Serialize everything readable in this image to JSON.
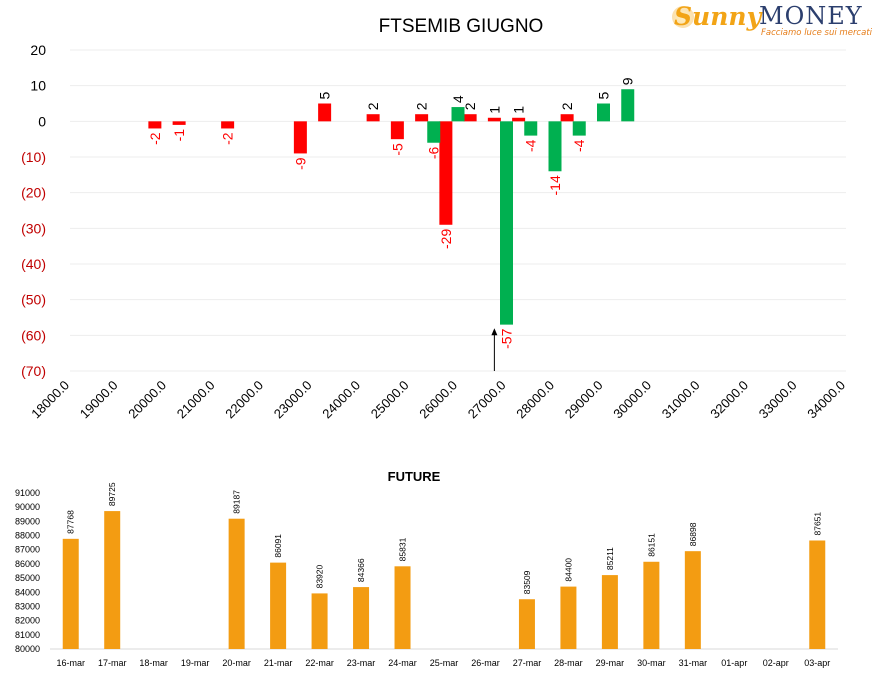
{
  "logo": {
    "brand_left": "Sunny",
    "brand_right": "MONEY",
    "tagline": "Facciamo luce sui mercati"
  },
  "colors": {
    "negative": "#ff0000",
    "positive": "#00b050",
    "future_bar": "#f39c12",
    "axis_text": "#000000",
    "neg_axis_text": "#c00000",
    "grid": "#ededed"
  },
  "chart_data": [
    {
      "type": "bar",
      "title": "FTSEMIB GIUGNO",
      "xlabel": "",
      "ylabel": "",
      "xlim": [
        18000,
        34000
      ],
      "ylim": [
        -70,
        20
      ],
      "x_ticks": [
        "18000.0",
        "19000.0",
        "20000.0",
        "21000.0",
        "22000.0",
        "23000.0",
        "24000.0",
        "25000.0",
        "26000.0",
        "27000.0",
        "28000.0",
        "29000.0",
        "30000.0",
        "31000.0",
        "32000.0",
        "33000.0",
        "34000.0"
      ],
      "y_ticks": [
        "20",
        "10",
        "0",
        "(10)",
        "(20)",
        "(30)",
        "(40)",
        "(50)",
        "(60)",
        "(70)"
      ],
      "grid": true,
      "series": [
        {
          "color": "red",
          "points": [
            {
              "x": 19750,
              "y": -2
            },
            {
              "x": 20250,
              "y": -1
            },
            {
              "x": 21250,
              "y": -2
            },
            {
              "x": 22750,
              "y": -9
            },
            {
              "x": 23250,
              "y": 5
            },
            {
              "x": 24250,
              "y": 2
            },
            {
              "x": 24750,
              "y": -5
            },
            {
              "x": 25250,
              "y": 2
            },
            {
              "x": 25750,
              "y": -29
            },
            {
              "x": 26250,
              "y": 2
            },
            {
              "x": 26750,
              "y": 1
            },
            {
              "x": 27250,
              "y": 1
            },
            {
              "x": 28250,
              "y": 2
            }
          ]
        },
        {
          "color": "green",
          "points": [
            {
              "x": 25500,
              "y": -6
            },
            {
              "x": 26000,
              "y": 4
            },
            {
              "x": 27000,
              "y": -57
            },
            {
              "x": 27500,
              "y": -4
            },
            {
              "x": 28000,
              "y": -14
            },
            {
              "x": 28500,
              "y": -4
            },
            {
              "x": 29000,
              "y": 5
            },
            {
              "x": 29500,
              "y": 9
            }
          ]
        }
      ],
      "annotations": [
        {
          "type": "arrow-up",
          "x": 26750,
          "y_from": -70,
          "y_to": -58
        }
      ]
    },
    {
      "type": "bar",
      "title": "FUTURE",
      "xlabel": "",
      "ylabel": "",
      "categories": [
        "16-mar",
        "17-mar",
        "18-mar",
        "19-mar",
        "20-mar",
        "21-mar",
        "22-mar",
        "23-mar",
        "24-mar",
        "25-mar",
        "26-mar",
        "27-mar",
        "28-mar",
        "29-mar",
        "30-mar",
        "31-mar",
        "01-apr",
        "02-apr",
        "03-apr"
      ],
      "values": [
        87768,
        89725,
        null,
        null,
        89187,
        86091,
        83920,
        84366,
        85831,
        null,
        null,
        83509,
        84400,
        85211,
        86151,
        86898,
        null,
        null,
        87651
      ],
      "ylim": [
        80000,
        91000
      ],
      "y_ticks": [
        "91000",
        "90000",
        "89000",
        "88000",
        "87000",
        "86000",
        "85000",
        "84000",
        "83000",
        "82000",
        "81000",
        "80000"
      ],
      "grid": false
    }
  ]
}
